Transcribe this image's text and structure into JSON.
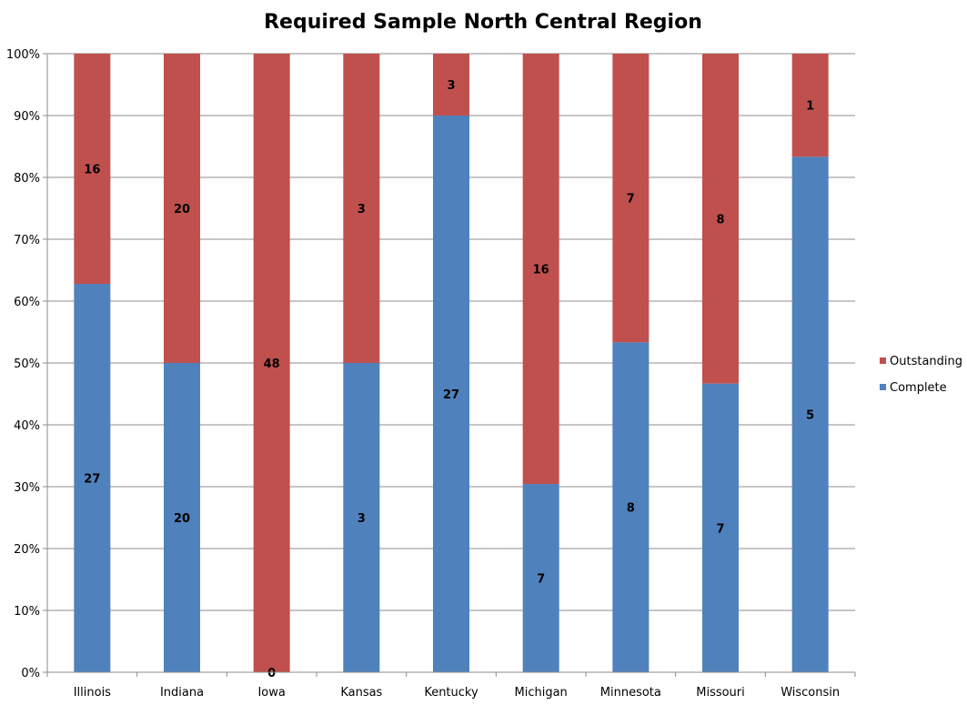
{
  "chart_data": {
    "type": "bar",
    "stacked": true,
    "normalized": true,
    "title": "Required Sample North Central Region",
    "categories": [
      "Illinois",
      "Indiana",
      "Iowa",
      "Kansas",
      "Kentucky",
      "Michigan",
      "Minnesota",
      "Missouri",
      "Wisconsin"
    ],
    "series": [
      {
        "name": "Complete",
        "values": [
          27,
          20,
          0,
          3,
          27,
          7,
          8,
          7,
          5
        ],
        "color": "#4f81bd"
      },
      {
        "name": "Outstanding",
        "values": [
          16,
          20,
          48,
          3,
          3,
          16,
          7,
          8,
          1
        ],
        "color": "#c0504d"
      }
    ],
    "y_ticks": [
      "0%",
      "10%",
      "20%",
      "30%",
      "40%",
      "50%",
      "60%",
      "70%",
      "80%",
      "90%",
      "100%"
    ],
    "ylim": [
      0,
      100
    ],
    "grid": true,
    "legend_position": "right",
    "legend_order": [
      "Outstanding",
      "Complete"
    ]
  }
}
